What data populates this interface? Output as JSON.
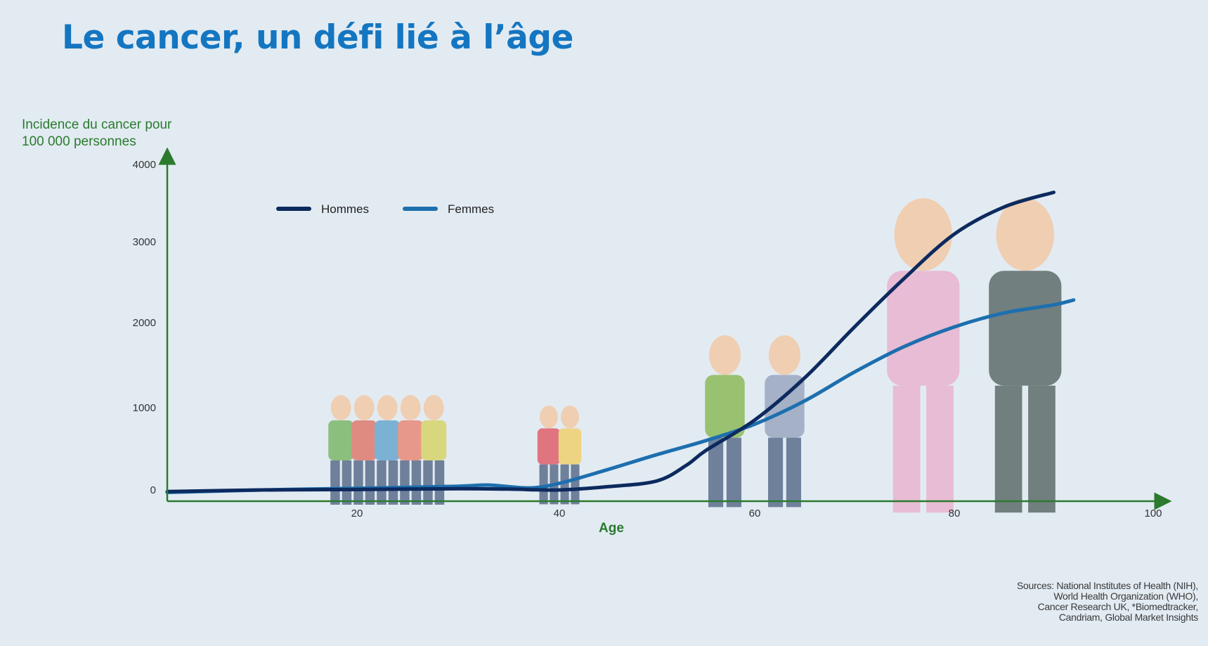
{
  "title": "Le cancer, un défi lié à l’âge",
  "ylabel_lines": [
    "Incidence du cancer pour",
    "100 000 personnes"
  ],
  "sources": [
    "Sources: National Institutes of Health (NIH),",
    "World Health Organization (WHO),",
    "Cancer Research UK, *Biomedtracker,",
    "Candriam, Global Market Insights"
  ],
  "chart_data": {
    "type": "line",
    "xlabel": "Age",
    "ylabel": "Incidence du cancer pour 100 000 personnes",
    "xlim": [
      0,
      100
    ],
    "ylim": [
      0,
      4000
    ],
    "xticks": [
      20,
      40,
      60,
      80,
      100
    ],
    "yticks": [
      0,
      1000,
      2000,
      3000,
      4000
    ],
    "legend_position": "top-left",
    "series": [
      {
        "name": "Hommes",
        "color": "#0d2a5e",
        "x": [
          0,
          10,
          20,
          30,
          35,
          40,
          45,
          50,
          53,
          55,
          60,
          65,
          70,
          75,
          80,
          85,
          90
        ],
        "y": [
          -20,
          0,
          5,
          15,
          10,
          0,
          40,
          110,
          300,
          480,
          850,
          1350,
          1950,
          2550,
          3100,
          3450,
          3640
        ]
      },
      {
        "name": "Femmes",
        "color": "#1d6fae",
        "x": [
          0,
          10,
          20,
          30,
          33,
          37,
          40,
          45,
          50,
          55,
          60,
          65,
          70,
          75,
          80,
          85,
          90,
          92
        ],
        "y": [
          -30,
          0,
          20,
          45,
          60,
          25,
          80,
          250,
          430,
          600,
          800,
          1080,
          1420,
          1720,
          1950,
          2120,
          2220,
          2280
        ]
      }
    ]
  },
  "figures": [
    {
      "name": "group-youth",
      "x": 23,
      "people": 5
    },
    {
      "name": "couple-40s",
      "x": 40,
      "people": 2
    },
    {
      "name": "couple-60s",
      "x": 60,
      "people": 2
    },
    {
      "name": "couple-80s",
      "x": 82,
      "people": 2
    }
  ],
  "colors": {
    "title": "#1476c1",
    "axis": "#2b7a2e",
    "background": "#e2ebf2"
  }
}
